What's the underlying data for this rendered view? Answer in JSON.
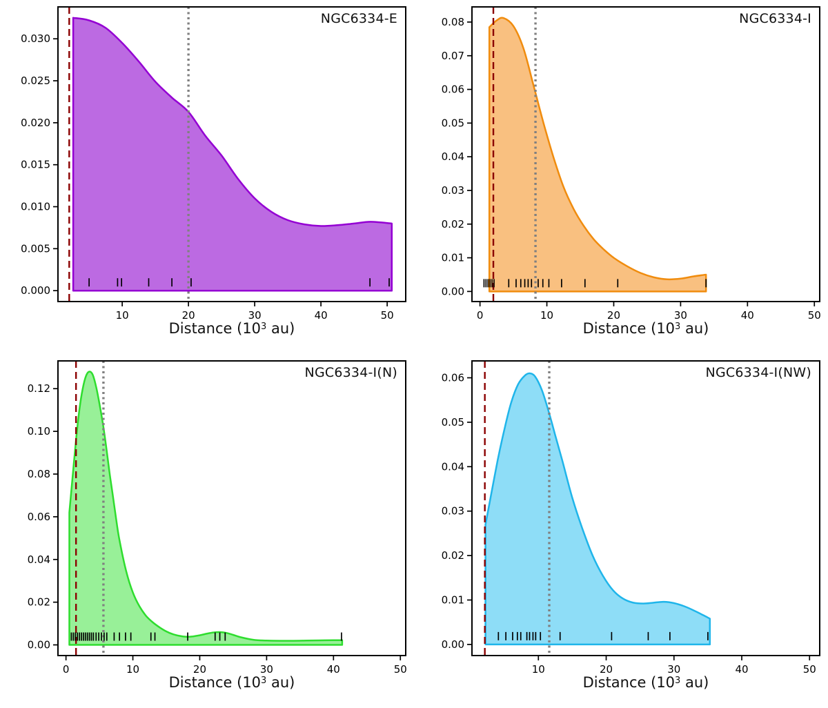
{
  "labels": {
    "xlabel_pre": "Distance (10",
    "xlabel_sup": "3",
    "xlabel_post": " au)"
  },
  "style": {
    "background": "#ffffff",
    "axis_color": "#000000",
    "tick_label_color": "#000000",
    "rug_color": "#000000",
    "dashed_line_color": "#8b0000",
    "dotted_line_color": "#808080"
  },
  "chart_data": [
    {
      "type": "area",
      "title": "NGC6334-E",
      "xlabel": "Distance (10^3 au)",
      "ylabel": "",
      "line_color": "#9400d3",
      "fill_color": "#bc6ae2",
      "xlim": [
        0.3,
        52.8
      ],
      "ylim": [
        -0.0013,
        0.0338
      ],
      "xticks": [
        10,
        20,
        30,
        40,
        50
      ],
      "xtick_labels": [
        "10",
        "20",
        "30",
        "40",
        "50"
      ],
      "yticks": [
        0,
        0.005,
        0.01,
        0.015,
        0.02,
        0.025,
        0.03
      ],
      "ytick_labels": [
        "0.000",
        "0.005",
        "0.010",
        "0.015",
        "0.020",
        "0.025",
        "0.030"
      ],
      "vline_dashed": 2.0,
      "vline_dotted": 20.0,
      "curve": [
        [
          2.6,
          0.0325
        ],
        [
          5,
          0.0322
        ],
        [
          7.5,
          0.0313
        ],
        [
          10,
          0.0295
        ],
        [
          12.5,
          0.0273
        ],
        [
          15,
          0.0249
        ],
        [
          17.5,
          0.023
        ],
        [
          20,
          0.0213
        ],
        [
          22.5,
          0.0185
        ],
        [
          25,
          0.0161
        ],
        [
          27.5,
          0.0133
        ],
        [
          30,
          0.011
        ],
        [
          32.5,
          0.0094
        ],
        [
          35,
          0.0084
        ],
        [
          37.5,
          0.0079
        ],
        [
          40,
          0.0077
        ],
        [
          42.5,
          0.0078
        ],
        [
          45,
          0.008
        ],
        [
          47.5,
          0.0082
        ],
        [
          50.7,
          0.008
        ]
      ],
      "rug": [
        5.0,
        9.3,
        9.9,
        14.0,
        17.5,
        20.4,
        47.4,
        50.3
      ]
    },
    {
      "type": "area",
      "title": "NGC6334-I",
      "xlabel": "Distance (10^3 au)",
      "ylabel": "",
      "line_color": "#f08c0e",
      "fill_color": "#f9c080",
      "xlim": [
        -1.2,
        50.8
      ],
      "ylim": [
        -0.003,
        0.0845
      ],
      "xticks": [
        0,
        10,
        20,
        30,
        40,
        50
      ],
      "xtick_labels": [
        "0",
        "10",
        "20",
        "30",
        "40",
        "50"
      ],
      "yticks": [
        0,
        0.01,
        0.02,
        0.03,
        0.04,
        0.05,
        0.06,
        0.07,
        0.08
      ],
      "ytick_labels": [
        "0.00",
        "0.01",
        "0.02",
        "0.03",
        "0.04",
        "0.05",
        "0.06",
        "0.07",
        "0.08"
      ],
      "vline_dashed": 2.0,
      "vline_dotted": 8.3,
      "curve": [
        [
          1.4,
          0.0785
        ],
        [
          2.5,
          0.0805
        ],
        [
          3.5,
          0.0812
        ],
        [
          5,
          0.0788
        ],
        [
          6.5,
          0.0722
        ],
        [
          8,
          0.0612
        ],
        [
          9.5,
          0.05
        ],
        [
          11,
          0.0398
        ],
        [
          12.5,
          0.031
        ],
        [
          14,
          0.0245
        ],
        [
          15.5,
          0.0195
        ],
        [
          17,
          0.0155
        ],
        [
          18.5,
          0.0125
        ],
        [
          20,
          0.01
        ],
        [
          22,
          0.0075
        ],
        [
          24,
          0.0055
        ],
        [
          26,
          0.0042
        ],
        [
          28,
          0.0036
        ],
        [
          30,
          0.0038
        ],
        [
          32,
          0.0045
        ],
        [
          33.8,
          0.005
        ]
      ],
      "rug": [
        0.6,
        0.9,
        1.2,
        1.5,
        1.8,
        2.1,
        4.3,
        5.4,
        6.1,
        6.7,
        7.2,
        7.7,
        8.7,
        9.4,
        10.3,
        12.2,
        15.7,
        20.6,
        33.8
      ]
    },
    {
      "type": "area",
      "title": "NGC6334-I(N)",
      "xlabel": "Distance (10^3 au)",
      "ylabel": "",
      "line_color": "#2edd2e",
      "fill_color": "#98f098",
      "xlim": [
        -1.2,
        50.8
      ],
      "ylim": [
        -0.005,
        0.133
      ],
      "xticks": [
        0,
        10,
        20,
        30,
        40,
        50
      ],
      "xtick_labels": [
        "0",
        "10",
        "20",
        "30",
        "40",
        "50"
      ],
      "yticks": [
        0,
        0.02,
        0.04,
        0.06,
        0.08,
        0.1,
        0.12
      ],
      "ytick_labels": [
        "0.00",
        "0.02",
        "0.04",
        "0.06",
        "0.08",
        "0.10",
        "0.12"
      ],
      "vline_dashed": 1.5,
      "vline_dotted": 5.6,
      "curve": [
        [
          0.5,
          0.062
        ],
        [
          1,
          0.079
        ],
        [
          1.5,
          0.096
        ],
        [
          2,
          0.11
        ],
        [
          2.5,
          0.12
        ],
        [
          3,
          0.126
        ],
        [
          3.5,
          0.128
        ],
        [
          4,
          0.1265
        ],
        [
          4.5,
          0.121
        ],
        [
          5,
          0.113
        ],
        [
          5.5,
          0.104
        ],
        [
          6,
          0.093
        ],
        [
          6.5,
          0.081
        ],
        [
          7,
          0.07
        ],
        [
          7.5,
          0.059
        ],
        [
          8,
          0.049
        ],
        [
          9,
          0.0345
        ],
        [
          10,
          0.0245
        ],
        [
          11,
          0.018
        ],
        [
          12,
          0.0135
        ],
        [
          13,
          0.0105
        ],
        [
          14,
          0.0082
        ],
        [
          15,
          0.0063
        ],
        [
          16,
          0.005
        ],
        [
          17,
          0.0042
        ],
        [
          18,
          0.0038
        ],
        [
          19,
          0.004
        ],
        [
          20,
          0.0045
        ],
        [
          21,
          0.0052
        ],
        [
          22,
          0.0058
        ],
        [
          23,
          0.006
        ],
        [
          24,
          0.0056
        ],
        [
          25,
          0.0047
        ],
        [
          26,
          0.0037
        ],
        [
          28,
          0.0024
        ],
        [
          30,
          0.002
        ],
        [
          32,
          0.0019
        ],
        [
          34,
          0.0019
        ],
        [
          36,
          0.002
        ],
        [
          38,
          0.0021
        ],
        [
          40,
          0.0022
        ],
        [
          41.3,
          0.0022
        ]
      ],
      "rug": [
        0.8,
        1.1,
        1.4,
        1.7,
        2.0,
        2.3,
        2.6,
        2.9,
        3.2,
        3.5,
        3.8,
        4.1,
        4.5,
        4.9,
        5.3,
        5.7,
        6.1,
        7.2,
        8.0,
        8.9,
        9.7,
        12.7,
        13.3,
        18.2,
        22.3,
        23.0,
        23.8,
        41.2
      ]
    },
    {
      "type": "area",
      "title": "NGC6334-I(NW)",
      "xlabel": "Distance (10^3 au)",
      "ylabel": "",
      "line_color": "#1fb5ea",
      "fill_color": "#8eddf7",
      "xlim": [
        0.2,
        51.5
      ],
      "ylim": [
        -0.0025,
        0.0638
      ],
      "xticks": [
        10,
        20,
        30,
        40,
        50
      ],
      "xtick_labels": [
        "10",
        "20",
        "30",
        "40",
        "50"
      ],
      "yticks": [
        0,
        0.01,
        0.02,
        0.03,
        0.04,
        0.05,
        0.06
      ],
      "ytick_labels": [
        "0.00",
        "0.01",
        "0.02",
        "0.03",
        "0.04",
        "0.05",
        "0.06"
      ],
      "vline_dashed": 2.1,
      "vline_dotted": 11.6,
      "curve": [
        [
          2.2,
          0.027
        ],
        [
          3,
          0.0335
        ],
        [
          4,
          0.0415
        ],
        [
          5,
          0.0485
        ],
        [
          6,
          0.0545
        ],
        [
          7,
          0.0585
        ],
        [
          8,
          0.0605
        ],
        [
          8.7,
          0.061
        ],
        [
          9.5,
          0.0603
        ],
        [
          10.5,
          0.0573
        ],
        [
          11.5,
          0.0525
        ],
        [
          12.5,
          0.047
        ],
        [
          13.5,
          0.0415
        ],
        [
          15,
          0.033
        ],
        [
          16.5,
          0.026
        ],
        [
          18,
          0.02
        ],
        [
          19.5,
          0.0155
        ],
        [
          21,
          0.0122
        ],
        [
          22.5,
          0.0103
        ],
        [
          24,
          0.0094
        ],
        [
          25.5,
          0.0092
        ],
        [
          27,
          0.0094
        ],
        [
          28.5,
          0.0096
        ],
        [
          30,
          0.0093
        ],
        [
          31.5,
          0.0086
        ],
        [
          33,
          0.0076
        ],
        [
          34.3,
          0.0066
        ],
        [
          35.3,
          0.0058
        ]
      ],
      "rug": [
        4.1,
        5.2,
        6.2,
        6.9,
        7.4,
        8.3,
        8.7,
        9.2,
        9.6,
        10.3,
        13.2,
        20.8,
        26.2,
        29.4,
        35.0
      ]
    }
  ]
}
